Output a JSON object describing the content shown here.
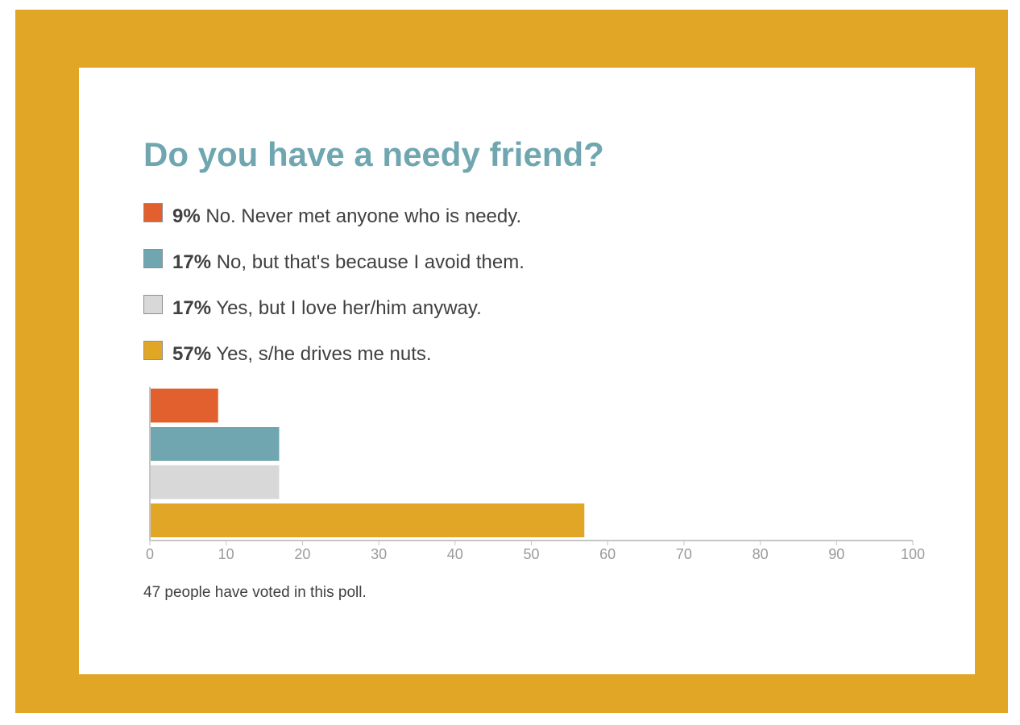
{
  "poll": {
    "title": "Do you have a needy friend?",
    "options": [
      {
        "percent": "9%",
        "label": "No. Never met anyone who is needy.",
        "color": "#e1602d"
      },
      {
        "percent": "17%",
        "label": "No, but that's because I avoid them.",
        "color": "#6fa6b0"
      },
      {
        "percent": "17%",
        "label": "Yes, but I love her/him anyway.",
        "color": "#d8d8d8"
      },
      {
        "percent": "57%",
        "label": "Yes, s/he drives me nuts.",
        "color": "#e2a626"
      }
    ],
    "votes_text": "47 people have voted in this poll."
  },
  "chart_data": {
    "type": "bar",
    "orientation": "horizontal",
    "categories": [
      "No. Never met anyone who is needy.",
      "No, but that's because I avoid them.",
      "Yes, but I love her/him anyway.",
      "Yes, s/he drives me nuts."
    ],
    "values": [
      9,
      17,
      17,
      57
    ],
    "colors": [
      "#e1602d",
      "#6fa6b0",
      "#d8d8d8",
      "#e2a626"
    ],
    "xlim": [
      0,
      100
    ],
    "xticks": [
      0,
      10,
      20,
      30,
      40,
      50,
      60,
      70,
      80,
      90,
      100
    ],
    "grid": false
  },
  "theme": {
    "frame_color": "#e2a626",
    "title_color": "#6fa6b0",
    "text_color": "#404040",
    "axis_color": "#c6c6c6",
    "tick_label_color": "#9a9a9a"
  }
}
